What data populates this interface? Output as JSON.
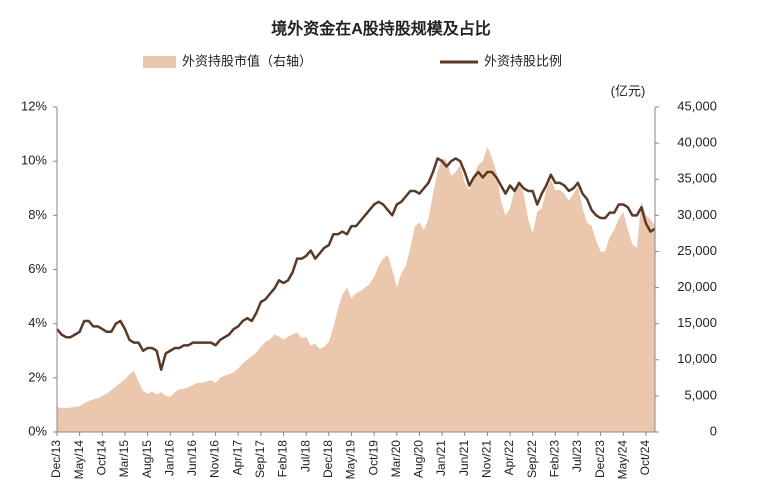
{
  "chart_data": {
    "type": "area_line",
    "title": "境外资金在A股持股规模及占比",
    "y2_label": "(亿元)",
    "categories": [
      "Dec/13",
      null,
      null,
      null,
      null,
      "May/14",
      null,
      null,
      null,
      null,
      "Oct/14",
      null,
      null,
      null,
      null,
      "Mar/15",
      null,
      null,
      null,
      null,
      "Aug/15",
      null,
      null,
      null,
      null,
      "Jan/16",
      null,
      null,
      null,
      null,
      "Jun/16",
      null,
      null,
      null,
      null,
      "Nov/16",
      null,
      null,
      null,
      null,
      "Apr/17",
      null,
      null,
      null,
      null,
      "Sep/17",
      null,
      null,
      null,
      null,
      "Feb/18",
      null,
      null,
      null,
      null,
      "Jul/18",
      null,
      null,
      null,
      null,
      "Dec/18",
      null,
      null,
      null,
      null,
      "May/19",
      null,
      null,
      null,
      null,
      "Oct/19",
      null,
      null,
      null,
      null,
      "Mar/20",
      null,
      null,
      null,
      null,
      "Aug/20",
      null,
      null,
      null,
      null,
      "Jan/21",
      null,
      null,
      null,
      null,
      "Jun/21",
      null,
      null,
      null,
      null,
      "Nov/21",
      null,
      null,
      null,
      null,
      "Apr/22",
      null,
      null,
      null,
      null,
      "Sep/22",
      null,
      null,
      null,
      null,
      "Feb/23",
      null,
      null,
      null,
      null,
      "Jul/23",
      null,
      null,
      null,
      null,
      "Dec/23",
      null,
      null,
      null,
      null,
      "May/24",
      null,
      null,
      null,
      null,
      "Oct/24",
      null,
      null
    ],
    "series": [
      {
        "name": "外资持股市值（右轴）",
        "color": "#ebc8ad",
        "kind": "area",
        "axis": "y2",
        "values": [
          3500,
          3300,
          3300,
          3400,
          3500,
          3600,
          4000,
          4300,
          4500,
          4700,
          5000,
          5300,
          5800,
          6300,
          6800,
          7300,
          8000,
          8500,
          7000,
          5700,
          5300,
          5600,
          5200,
          5500,
          5000,
          4900,
          5500,
          5900,
          6000,
          6200,
          6500,
          6800,
          6800,
          7000,
          7200,
          6800,
          7500,
          7800,
          8000,
          8300,
          8800,
          9500,
          10000,
          10500,
          11000,
          11800,
          12500,
          12800,
          13500,
          13200,
          12800,
          13200,
          13500,
          13800,
          13000,
          13200,
          12000,
          12200,
          11500,
          11800,
          12500,
          14500,
          17000,
          19000,
          20000,
          18500,
          19200,
          19500,
          20000,
          20500,
          21500,
          23000,
          24000,
          24500,
          22500,
          20000,
          22000,
          23000,
          25500,
          28500,
          29000,
          28000,
          29500,
          33000,
          36000,
          38000,
          37500,
          35500,
          36000,
          37000,
          34500,
          33500,
          35500,
          37000,
          37500,
          39500,
          38000,
          36000,
          32000,
          30000,
          31000,
          33500,
          34500,
          33000,
          29500,
          27500,
          30500,
          31000,
          33500,
          35000,
          33500,
          33500,
          33000,
          32000,
          33000,
          34000,
          31000,
          29000,
          28500,
          26500,
          25000,
          25000,
          27000,
          28000,
          29500,
          30500,
          28000,
          26000,
          25500,
          32000,
          30000,
          29500,
          28500
        ]
      },
      {
        "name": "外资持股比例",
        "color": "#5a3a26",
        "kind": "line",
        "values": [
          3.8,
          3.6,
          3.5,
          3.5,
          3.6,
          3.7,
          4.1,
          4.1,
          3.9,
          3.9,
          3.8,
          3.7,
          3.7,
          4.0,
          4.1,
          3.8,
          3.4,
          3.3,
          3.3,
          3.0,
          3.1,
          3.1,
          3.0,
          2.3,
          2.9,
          3.0,
          3.1,
          3.1,
          3.2,
          3.2,
          3.3,
          3.3,
          3.3,
          3.3,
          3.3,
          3.2,
          3.4,
          3.5,
          3.6,
          3.8,
          3.9,
          4.1,
          4.2,
          4.1,
          4.4,
          4.8,
          4.9,
          5.1,
          5.3,
          5.6,
          5.5,
          5.6,
          5.9,
          6.4,
          6.4,
          6.5,
          6.7,
          6.4,
          6.6,
          6.8,
          6.9,
          7.3,
          7.3,
          7.4,
          7.3,
          7.6,
          7.6,
          7.8,
          8.0,
          8.2,
          8.4,
          8.5,
          8.4,
          8.2,
          8.0,
          8.4,
          8.5,
          8.7,
          8.9,
          8.9,
          8.8,
          9.0,
          9.2,
          9.6,
          10.1,
          10.0,
          9.8,
          10.0,
          10.1,
          10.0,
          9.6,
          9.1,
          9.4,
          9.6,
          9.4,
          9.6,
          9.6,
          9.4,
          9.1,
          8.8,
          9.1,
          8.9,
          9.2,
          9.0,
          8.9,
          8.9,
          8.4,
          8.8,
          9.1,
          9.5,
          9.2,
          9.2,
          9.1,
          8.9,
          9.0,
          9.2,
          8.8,
          8.6,
          8.2,
          8.0,
          7.9,
          7.9,
          8.1,
          8.1,
          8.4,
          8.4,
          8.3,
          8.0,
          8.0,
          8.3,
          7.7,
          7.4,
          7.5
        ]
      }
    ],
    "ylim": [
      0,
      12
    ],
    "yticks": [
      {
        "value": 0,
        "label": "0%"
      },
      {
        "value": 2,
        "label": "2%"
      },
      {
        "value": 4,
        "label": "4%"
      },
      {
        "value": 6,
        "label": "6%"
      },
      {
        "value": 8,
        "label": "8%"
      },
      {
        "value": 10,
        "label": "10%"
      },
      {
        "value": 12,
        "label": "12%"
      }
    ],
    "y2lim": [
      0,
      45000
    ],
    "y2ticks": [
      0,
      {
        "value": 5000,
        "label": "5,000"
      },
      {
        "value": 10000,
        "label": "10,000"
      },
      {
        "value": 15000,
        "label": "15,000"
      },
      {
        "value": 20000,
        "label": "20,000"
      },
      {
        "value": 25000,
        "label": "25,000"
      },
      {
        "value": 30000,
        "label": "30,000"
      },
      {
        "value": 35000,
        "label": "35,000"
      },
      {
        "value": 40000,
        "label": "40,000"
      },
      {
        "value": 45000,
        "label": "45,000"
      }
    ]
  }
}
